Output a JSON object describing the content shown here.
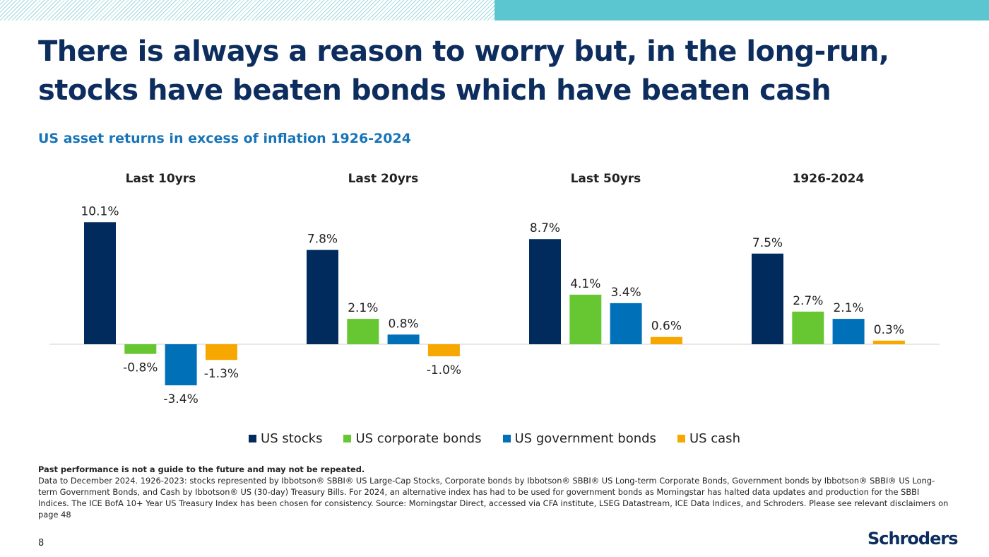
{
  "header": {
    "title_line1": "There is always a reason to worry but, in the long-run,",
    "title_line2": "stocks have beaten bonds which have beaten cash",
    "subtitle": "US asset returns in excess of inflation 1926-2024"
  },
  "colors": {
    "navy": "#0d2d5e",
    "accent_blue": "#1874b8",
    "teal": "#5bc6d0"
  },
  "chart_data": {
    "type": "bar",
    "categories": [
      "Last 10yrs",
      "Last 20yrs",
      "Last 50yrs",
      "1926-2024"
    ],
    "series": [
      {
        "name": "US stocks",
        "color": "#002b5c",
        "values": [
          10.1,
          7.8,
          8.7,
          7.5
        ]
      },
      {
        "name": "US corporate bonds",
        "color": "#66c733",
        "values": [
          -0.8,
          2.1,
          4.1,
          2.7
        ]
      },
      {
        "name": "US government bonds",
        "color": "#0071b8",
        "values": [
          -3.4,
          0.8,
          3.4,
          2.1
        ]
      },
      {
        "name": "US cash",
        "color": "#f6a800",
        "values": [
          -1.3,
          -1.0,
          0.6,
          0.3
        ]
      }
    ],
    "value_suffix": "%",
    "ylim": [
      -4,
      11
    ],
    "grid": false,
    "legend": "bottom"
  },
  "footnote": {
    "bold_line": "Past performance is not a guide to the future and may not be repeated.",
    "body": "Data to December 2024. 1926-2023: stocks represented by Ibbotson® SBBI® US Large-Cap Stocks, Corporate bonds by Ibbotson® SBBI® US Long-term Corporate Bonds, Government bonds by Ibbotson® SBBI® US Long-term Government Bonds, and Cash by Ibbotson® US (30-day) Treasury Bills. For 2024, an alternative index has had to be used for government bonds as Morningstar has halted data updates and production for the SBBI Indices. The ICE BofA 10+ Year US Treasury Index has been chosen for consistency. Source: Morningstar Direct, accessed via CFA institute, LSEG Datastream, ICE Data Indices, and Schroders. Please see relevant disclaimers on page 48"
  },
  "page_number": "8",
  "logo_text": "Schroders"
}
